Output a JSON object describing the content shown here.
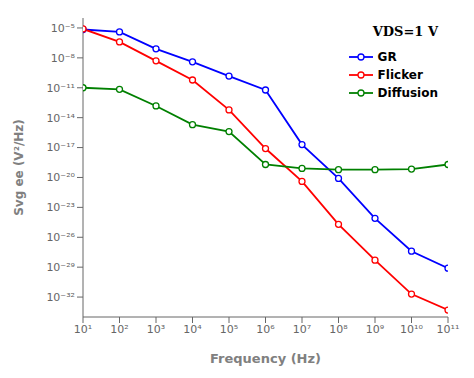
{
  "chart_data": {
    "type": "line",
    "xlabel": "Frequency (Hz)",
    "ylabel": "Svg ee (V²/Hz)",
    "annotations": [
      "VDS=1 V"
    ],
    "log": true,
    "grid": false,
    "legend": "upper right",
    "marker": "o",
    "x": [
      10.0,
      100.0,
      1000.0,
      10000.0,
      100000.0,
      1000000.0,
      10000000.0,
      100000000.0,
      1000000000.0,
      10000000000.0,
      100000000000.0
    ],
    "series": [
      {
        "name": "GR",
        "color": "#0000ff",
        "values": [
          7e-06,
          4e-06,
          8e-08,
          4e-09,
          1.5e-10,
          6e-12,
          2e-17,
          8e-21,
          8e-25,
          4e-28,
          8e-30
        ]
      },
      {
        "name": "Flicker",
        "color": "#ff0000",
        "values": [
          8e-06,
          4e-07,
          5e-09,
          6e-11,
          6e-14,
          8e-18,
          4e-21,
          2e-25,
          5e-29,
          2e-32,
          5e-34
        ]
      },
      {
        "name": "Diffusion",
        "color": "#008000",
        "values": [
          1e-11,
          7e-12,
          1.5e-13,
          2e-15,
          4e-16,
          2e-19,
          8e-20,
          6e-20,
          6e-20,
          7e-20,
          2e-19
        ]
      }
    ],
    "xlim": [
      10.0,
      100000000000.0
    ],
    "ylim": [
      1e-34,
      0.0001
    ],
    "xticks": [
      {
        "value": 10.0,
        "label": "10¹"
      },
      {
        "value": 100.0,
        "label": "10²"
      },
      {
        "value": 1000.0,
        "label": "10³"
      },
      {
        "value": 10000.0,
        "label": "10⁴"
      },
      {
        "value": 100000.0,
        "label": "10⁵"
      },
      {
        "value": 1000000.0,
        "label": "10⁶"
      },
      {
        "value": 10000000.0,
        "label": "10⁷"
      },
      {
        "value": 100000000.0,
        "label": "10⁸"
      },
      {
        "value": 1000000000.0,
        "label": "10⁹"
      },
      {
        "value": 10000000000.0,
        "label": "10¹⁰"
      },
      {
        "value": 100000000000.0,
        "label": "10¹¹"
      }
    ],
    "yticks": [
      {
        "value": 1e-05,
        "label": "10⁻⁵"
      },
      {
        "value": 1e-08,
        "label": "10⁻⁸"
      },
      {
        "value": 1e-11,
        "label": "10⁻¹¹"
      },
      {
        "value": 1e-14,
        "label": "10⁻¹⁴"
      },
      {
        "value": 1e-17,
        "label": "10⁻¹⁷"
      },
      {
        "value": 1e-20,
        "label": "10⁻²⁰"
      },
      {
        "value": 1e-23,
        "label": "10⁻²³"
      },
      {
        "value": 1e-26,
        "label": "10⁻²⁶"
      },
      {
        "value": 1e-29,
        "label": "10⁻²⁹"
      },
      {
        "value": 1e-32,
        "label": "10⁻³²"
      }
    ]
  }
}
